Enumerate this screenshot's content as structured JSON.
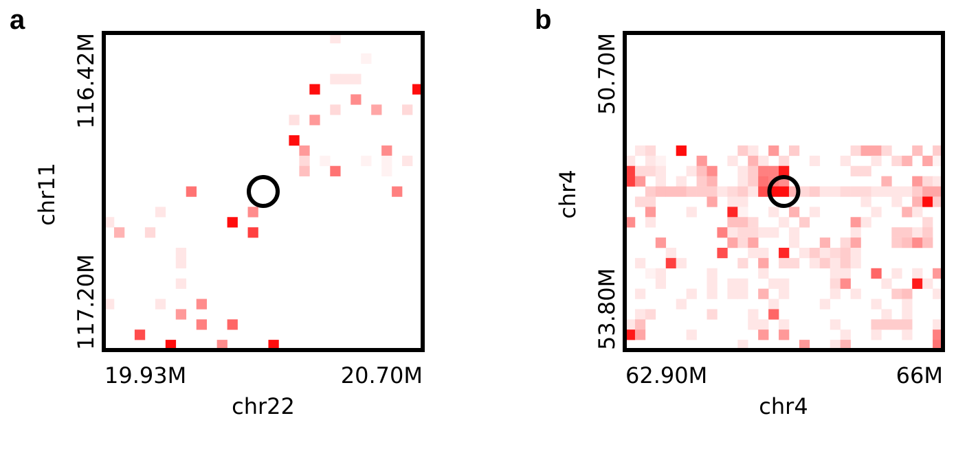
{
  "chart_data": [
    {
      "type": "heatmap",
      "panel": "a",
      "xlabel": "chr22",
      "ylabel": "chr11",
      "xticks": [
        "19.93M",
        "20.70M"
      ],
      "yticks": [
        "116.42M",
        "117.20M"
      ],
      "grid": false,
      "color": "#ff0000",
      "cols": 31,
      "rows": 31,
      "marker": {
        "col": 15,
        "row": 15
      },
      "cells": [
        [
          22,
          0,
          0.1
        ],
        [
          25,
          2,
          0.05
        ],
        [
          22,
          4,
          0.1
        ],
        [
          23,
          4,
          0.1
        ],
        [
          24,
          4,
          0.1
        ],
        [
          20,
          5,
          0.95
        ],
        [
          30,
          5,
          0.95
        ],
        [
          24,
          6,
          0.45
        ],
        [
          22,
          7,
          0.15
        ],
        [
          26,
          7,
          0.35
        ],
        [
          29,
          7,
          0.15
        ],
        [
          18,
          8,
          0.12
        ],
        [
          20,
          8,
          0.4
        ],
        [
          18,
          10,
          0.95
        ],
        [
          19,
          11,
          0.4
        ],
        [
          27,
          11,
          0.45
        ],
        [
          19,
          12,
          0.15
        ],
        [
          21,
          12,
          0.05
        ],
        [
          25,
          12,
          0.05
        ],
        [
          27,
          12,
          0.05
        ],
        [
          29,
          12,
          0.1
        ],
        [
          19,
          13,
          0.25
        ],
        [
          22,
          13,
          0.55
        ],
        [
          27,
          13,
          0.05
        ],
        [
          8,
          15,
          0.55
        ],
        [
          28,
          15,
          0.5
        ],
        [
          5,
          17,
          0.1
        ],
        [
          14,
          17,
          0.45
        ],
        [
          0,
          18,
          0.1
        ],
        [
          12,
          18,
          0.95
        ],
        [
          1,
          19,
          0.3
        ],
        [
          4,
          19,
          0.15
        ],
        [
          14,
          19,
          0.75
        ],
        [
          7,
          21,
          0.1
        ],
        [
          7,
          22,
          0.1
        ],
        [
          7,
          24,
          0.1
        ],
        [
          0,
          26,
          0.1
        ],
        [
          5,
          26,
          0.1
        ],
        [
          9,
          26,
          0.45
        ],
        [
          7,
          27,
          0.4
        ],
        [
          9,
          28,
          0.5
        ],
        [
          12,
          28,
          0.6
        ],
        [
          3,
          29,
          0.7
        ],
        [
          6,
          30,
          0.95
        ],
        [
          11,
          30,
          0.45
        ],
        [
          16,
          30,
          0.95
        ]
      ]
    },
    {
      "type": "heatmap",
      "panel": "b",
      "xlabel": "chr4",
      "ylabel": "chr4",
      "xticks": [
        "62.90M",
        "66M"
      ],
      "yticks": [
        "50.70M",
        "53.80M"
      ],
      "grid": false,
      "color": "#ff0000",
      "cols": 31,
      "rows": 31,
      "marker": {
        "col": 15,
        "row": 15
      },
      "cells": [
        [
          1,
          11,
          0.1
        ],
        [
          2,
          11,
          0.15
        ],
        [
          5,
          11,
          0.95
        ],
        [
          11,
          11,
          0.2
        ],
        [
          12,
          11,
          0.1
        ],
        [
          14,
          11,
          0.4
        ],
        [
          16,
          11,
          0.2
        ],
        [
          22,
          11,
          0.15
        ],
        [
          23,
          11,
          0.35
        ],
        [
          24,
          11,
          0.35
        ],
        [
          25,
          11,
          0.15
        ],
        [
          28,
          11,
          0.25
        ],
        [
          30,
          11,
          0.2
        ],
        [
          0,
          12,
          0.1
        ],
        [
          2,
          12,
          0.1
        ],
        [
          3,
          12,
          0.05
        ],
        [
          7,
          12,
          0.4
        ],
        [
          10,
          12,
          0.1
        ],
        [
          12,
          12,
          0.3
        ],
        [
          13,
          12,
          0.1
        ],
        [
          15,
          12,
          0.15
        ],
        [
          18,
          12,
          0.1
        ],
        [
          21,
          12,
          0.1
        ],
        [
          24,
          12,
          0.1
        ],
        [
          26,
          12,
          0.15
        ],
        [
          27,
          12,
          0.3
        ],
        [
          29,
          12,
          0.35
        ],
        [
          30,
          12,
          0.05
        ],
        [
          0,
          13,
          0.75
        ],
        [
          1,
          13,
          0.15
        ],
        [
          2,
          13,
          0.15
        ],
        [
          3,
          13,
          0.1
        ],
        [
          6,
          13,
          0.1
        ],
        [
          7,
          13,
          0.25
        ],
        [
          8,
          13,
          0.45
        ],
        [
          11,
          13,
          0.1
        ],
        [
          12,
          13,
          0.2
        ],
        [
          13,
          13,
          0.5
        ],
        [
          14,
          13,
          0.5
        ],
        [
          15,
          13,
          0.9
        ],
        [
          22,
          13,
          0.15
        ],
        [
          23,
          13,
          0.15
        ],
        [
          0,
          14,
          0.75
        ],
        [
          1,
          14,
          0.4
        ],
        [
          3,
          14,
          0.1
        ],
        [
          5,
          14,
          0.1
        ],
        [
          7,
          14,
          0.2
        ],
        [
          8,
          14,
          0.3
        ],
        [
          11,
          14,
          0.1
        ],
        [
          12,
          14,
          0.2
        ],
        [
          13,
          14,
          0.55
        ],
        [
          14,
          14,
          0.5
        ],
        [
          15,
          14,
          0.45
        ],
        [
          25,
          14,
          0.3
        ],
        [
          28,
          14,
          0.4
        ],
        [
          29,
          14,
          0.15
        ],
        [
          30,
          14,
          0.1
        ],
        [
          2,
          15,
          0.2
        ],
        [
          3,
          15,
          0.25
        ],
        [
          4,
          15,
          0.25
        ],
        [
          5,
          15,
          0.25
        ],
        [
          6,
          15,
          0.2
        ],
        [
          7,
          15,
          0.2
        ],
        [
          8,
          15,
          0.2
        ],
        [
          9,
          15,
          0.1
        ],
        [
          10,
          15,
          0.15
        ],
        [
          11,
          15,
          0.2
        ],
        [
          12,
          15,
          0.1
        ],
        [
          13,
          15,
          0.7
        ],
        [
          14,
          15,
          0.95
        ],
        [
          15,
          15,
          0.95
        ],
        [
          16,
          15,
          0.3
        ],
        [
          17,
          15,
          0.15
        ],
        [
          18,
          15,
          0.2
        ],
        [
          19,
          15,
          0.1
        ],
        [
          20,
          15,
          0.1
        ],
        [
          21,
          15,
          0.15
        ],
        [
          22,
          15,
          0.15
        ],
        [
          23,
          15,
          0.15
        ],
        [
          24,
          15,
          0.1
        ],
        [
          25,
          15,
          0.1
        ],
        [
          26,
          15,
          0.1
        ],
        [
          27,
          15,
          0.1
        ],
        [
          28,
          15,
          0.2
        ],
        [
          29,
          15,
          0.35
        ],
        [
          30,
          15,
          0.35
        ],
        [
          1,
          16,
          0.15
        ],
        [
          2,
          16,
          0.15
        ],
        [
          8,
          16,
          0.35
        ],
        [
          10,
          16,
          0.1
        ],
        [
          11,
          16,
          0.1
        ],
        [
          23,
          16,
          0.1
        ],
        [
          26,
          16,
          0.1
        ],
        [
          28,
          16,
          0.3
        ],
        [
          29,
          16,
          0.95
        ],
        [
          30,
          16,
          0.2
        ],
        [
          2,
          17,
          0.4
        ],
        [
          6,
          17,
          0.1
        ],
        [
          10,
          17,
          0.85
        ],
        [
          11,
          17,
          0.05
        ],
        [
          14,
          17,
          0.1
        ],
        [
          16,
          17,
          0.3
        ],
        [
          18,
          17,
          0.1
        ],
        [
          24,
          17,
          0.1
        ],
        [
          27,
          17,
          0.3
        ],
        [
          28,
          17,
          0.1
        ],
        [
          0,
          18,
          0.45
        ],
        [
          2,
          18,
          0.1
        ],
        [
          10,
          18,
          0.25
        ],
        [
          11,
          18,
          0.25
        ],
        [
          12,
          18,
          0.15
        ],
        [
          15,
          18,
          0.1
        ],
        [
          17,
          18,
          0.2
        ],
        [
          22,
          18,
          0.4
        ],
        [
          23,
          18,
          0.1
        ],
        [
          29,
          18,
          0.15
        ],
        [
          9,
          19,
          0.5
        ],
        [
          10,
          19,
          0.1
        ],
        [
          11,
          19,
          0.15
        ],
        [
          12,
          19,
          0.15
        ],
        [
          13,
          19,
          0.1
        ],
        [
          14,
          19,
          0.1
        ],
        [
          16,
          19,
          0.1
        ],
        [
          22,
          19,
          0.1
        ],
        [
          26,
          19,
          0.2
        ],
        [
          27,
          19,
          0.2
        ],
        [
          28,
          19,
          0.1
        ],
        [
          29,
          19,
          0.2
        ],
        [
          3,
          20,
          0.4
        ],
        [
          10,
          20,
          0.35
        ],
        [
          11,
          20,
          0.15
        ],
        [
          12,
          20,
          0.35
        ],
        [
          16,
          20,
          0.1
        ],
        [
          19,
          20,
          0.3
        ],
        [
          21,
          20,
          0.15
        ],
        [
          22,
          20,
          0.35
        ],
        [
          26,
          20,
          0.2
        ],
        [
          27,
          20,
          0.25
        ],
        [
          28,
          20,
          0.45
        ],
        [
          29,
          20,
          0.25
        ],
        [
          4,
          21,
          0.1
        ],
        [
          9,
          21,
          0.7
        ],
        [
          12,
          21,
          0.1
        ],
        [
          13,
          21,
          0.1
        ],
        [
          15,
          21,
          0.85
        ],
        [
          17,
          21,
          0.1
        ],
        [
          18,
          21,
          0.2
        ],
        [
          19,
          21,
          0.1
        ],
        [
          20,
          21,
          0.15
        ],
        [
          21,
          21,
          0.2
        ],
        [
          22,
          21,
          0.1
        ],
        [
          1,
          22,
          0.1
        ],
        [
          4,
          22,
          0.75
        ],
        [
          5,
          22,
          0.1
        ],
        [
          11,
          22,
          0.15
        ],
        [
          13,
          22,
          0.35
        ],
        [
          15,
          22,
          0.15
        ],
        [
          16,
          22,
          0.15
        ],
        [
          18,
          22,
          0.1
        ],
        [
          19,
          22,
          0.2
        ],
        [
          20,
          22,
          0.1
        ],
        [
          21,
          22,
          0.2
        ],
        [
          22,
          22,
          0.1
        ],
        [
          2,
          23,
          0.05
        ],
        [
          3,
          23,
          0.1
        ],
        [
          8,
          23,
          0.1
        ],
        [
          13,
          23,
          0.1
        ],
        [
          20,
          23,
          0.1
        ],
        [
          21,
          23,
          0.1
        ],
        [
          24,
          23,
          0.6
        ],
        [
          26,
          23,
          0.1
        ],
        [
          28,
          23,
          0.1
        ],
        [
          30,
          23,
          0.4
        ],
        [
          3,
          24,
          0.1
        ],
        [
          8,
          24,
          0.1
        ],
        [
          10,
          24,
          0.1
        ],
        [
          11,
          24,
          0.1
        ],
        [
          14,
          24,
          0.1
        ],
        [
          15,
          24,
          0.1
        ],
        [
          20,
          24,
          0.15
        ],
        [
          21,
          24,
          0.45
        ],
        [
          25,
          24,
          0.1
        ],
        [
          28,
          24,
          0.9
        ],
        [
          29,
          24,
          0.1
        ],
        [
          1,
          25,
          0.1
        ],
        [
          6,
          25,
          0.1
        ],
        [
          8,
          25,
          0.1
        ],
        [
          10,
          25,
          0.1
        ],
        [
          11,
          25,
          0.1
        ],
        [
          13,
          25,
          0.3
        ],
        [
          15,
          25,
          0.1
        ],
        [
          20,
          25,
          0.1
        ],
        [
          22,
          25,
          0.1
        ],
        [
          26,
          25,
          0.2
        ],
        [
          27,
          25,
          0.25
        ],
        [
          30,
          25,
          0.1
        ],
        [
          5,
          26,
          0.1
        ],
        [
          14,
          26,
          0.1
        ],
        [
          19,
          26,
          0.1
        ],
        [
          24,
          26,
          0.1
        ],
        [
          27,
          26,
          0.1
        ],
        [
          1,
          27,
          0.1
        ],
        [
          2,
          27,
          0.15
        ],
        [
          8,
          27,
          0.15
        ],
        [
          12,
          27,
          0.1
        ],
        [
          14,
          27,
          0.6
        ],
        [
          25,
          27,
          0.1
        ],
        [
          27,
          27,
          0.1
        ],
        [
          0,
          28,
          0.1
        ],
        [
          1,
          28,
          0.25
        ],
        [
          12,
          28,
          0.1
        ],
        [
          13,
          28,
          0.1
        ],
        [
          15,
          28,
          0.1
        ],
        [
          20,
          28,
          0.1
        ],
        [
          24,
          28,
          0.2
        ],
        [
          25,
          28,
          0.2
        ],
        [
          26,
          28,
          0.2
        ],
        [
          27,
          28,
          0.2
        ],
        [
          30,
          28,
          0.1
        ],
        [
          0,
          29,
          0.9
        ],
        [
          1,
          29,
          0.35
        ],
        [
          6,
          29,
          0.1
        ],
        [
          13,
          29,
          0.4
        ],
        [
          15,
          29,
          0.4
        ],
        [
          21,
          29,
          0.1
        ],
        [
          24,
          29,
          0.1
        ],
        [
          27,
          29,
          0.1
        ],
        [
          30,
          29,
          0.5
        ],
        [
          11,
          30,
          0.1
        ],
        [
          17,
          30,
          0.4
        ],
        [
          20,
          30,
          0.1
        ],
        [
          21,
          30,
          0.3
        ],
        [
          30,
          30,
          0.55
        ]
      ]
    }
  ]
}
